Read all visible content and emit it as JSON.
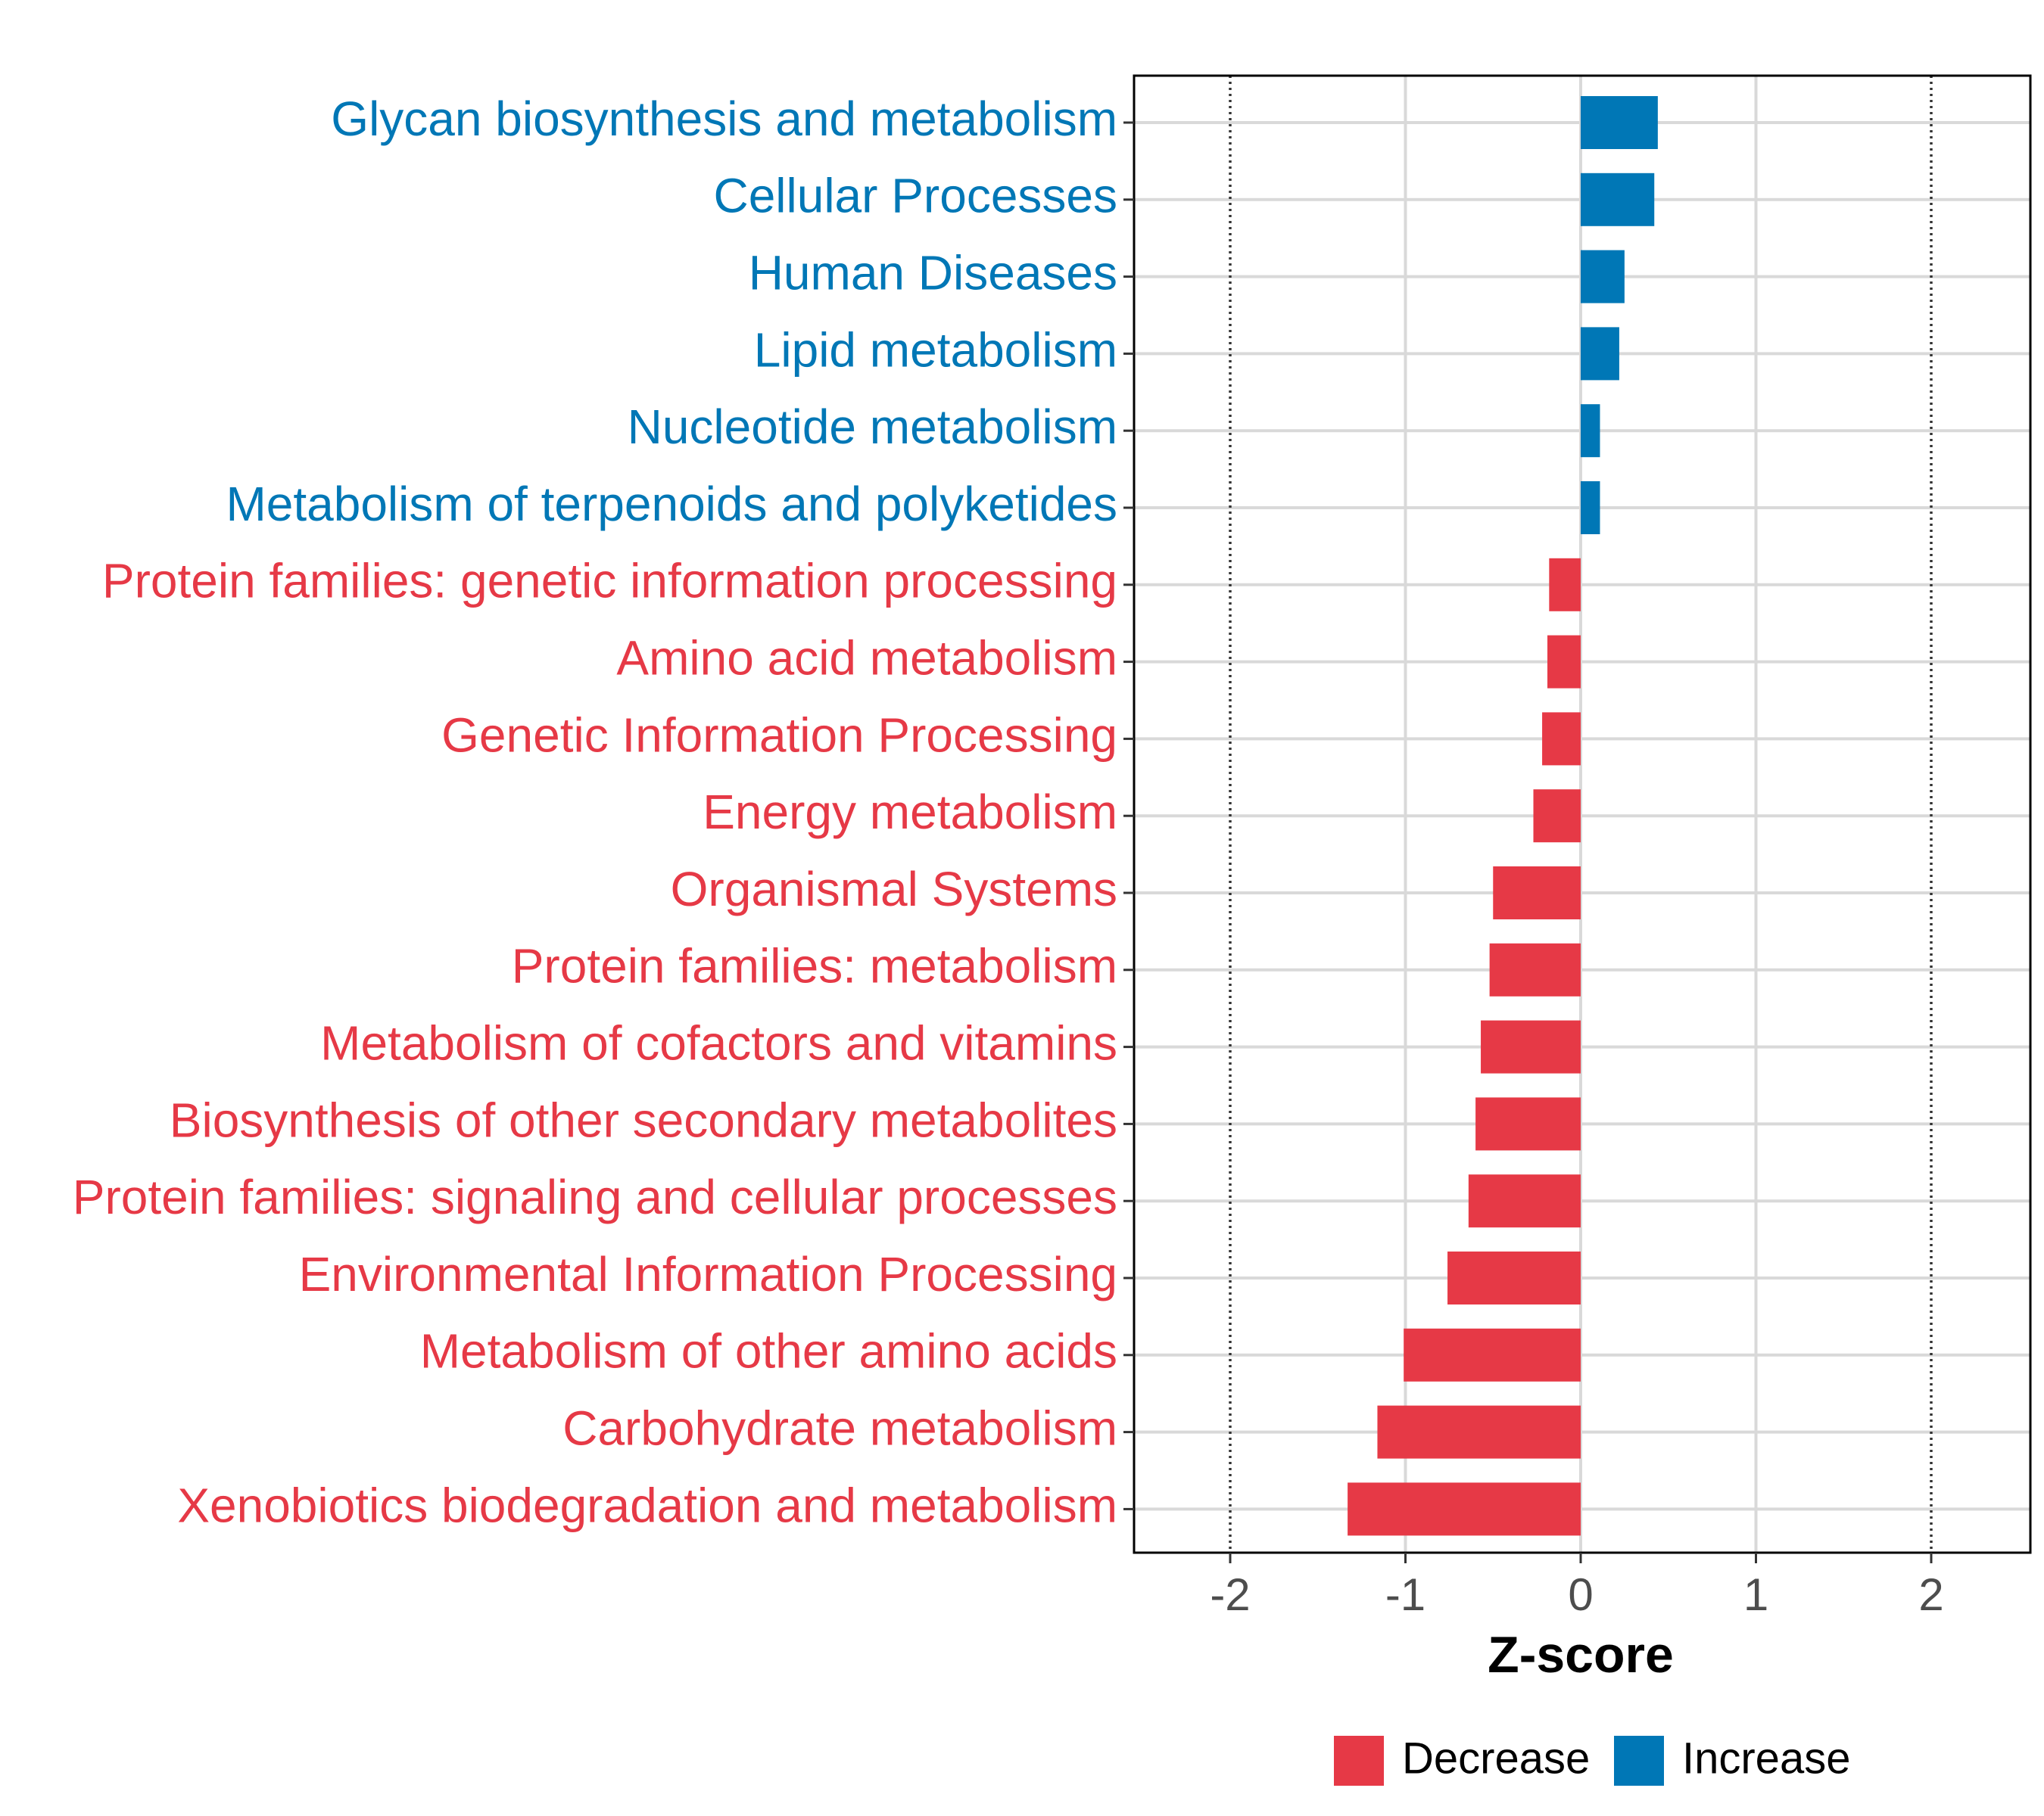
{
  "chart_data": {
    "type": "bar",
    "orientation": "horizontal",
    "categories": [
      "Glycan biosynthesis and metabolism",
      "Cellular Processes",
      "Human Diseases",
      "Lipid metabolism",
      "Nucleotide metabolism",
      "Metabolism of terpenoids and polyketides",
      "Protein families: genetic information processing",
      "Amino acid metabolism",
      "Genetic Information Processing",
      "Energy metabolism",
      "Organismal Systems",
      "Protein families: metabolism",
      "Metabolism of cofactors and vitamins",
      "Biosynthesis of other secondary metabolites",
      "Protein families: signaling and cellular processes",
      "Environmental Information Processing",
      "Metabolism of other amino acids",
      "Carbohydrate metabolism",
      "Xenobiotics biodegradation and metabolism"
    ],
    "values": [
      0.44,
      0.42,
      0.25,
      0.22,
      0.11,
      0.11,
      -0.18,
      -0.19,
      -0.22,
      -0.27,
      -0.5,
      -0.52,
      -0.57,
      -0.6,
      -0.64,
      -0.76,
      -1.01,
      -1.16,
      -1.33
    ],
    "groups": [
      "Increase",
      "Increase",
      "Increase",
      "Increase",
      "Increase",
      "Increase",
      "Decrease",
      "Decrease",
      "Decrease",
      "Decrease",
      "Decrease",
      "Decrease",
      "Decrease",
      "Decrease",
      "Decrease",
      "Decrease",
      "Decrease",
      "Decrease",
      "Decrease"
    ],
    "xlabel": "Z-score",
    "ylabel": "",
    "xlim": [
      -2.56,
      2.56
    ],
    "xticks": [
      -2,
      -1,
      0,
      1,
      2
    ],
    "xtick_labels": [
      "-2",
      "-1",
      "0",
      "1",
      "2"
    ],
    "reference_lines": [
      -2,
      2
    ],
    "grid": true,
    "legend": {
      "placement": "bottom",
      "entries": [
        {
          "label": "Decrease",
          "color": "#e63946"
        },
        {
          "label": "Increase",
          "color": "#0077b6"
        }
      ]
    }
  },
  "colors": {
    "decrease": "#e63946",
    "increase": "#0077b6",
    "grid": "#d9d9d9",
    "axis": "#000000"
  }
}
